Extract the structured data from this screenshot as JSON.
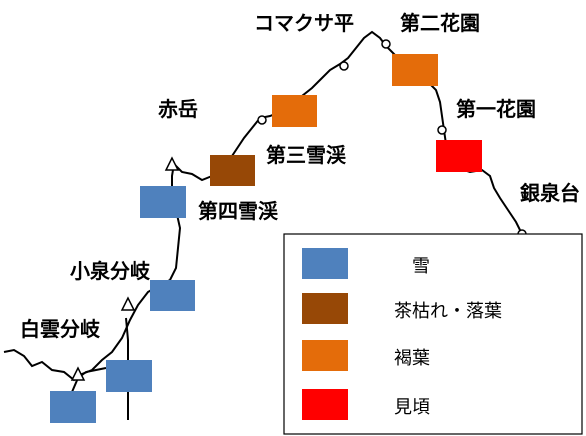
{
  "map": {
    "places": [
      {
        "id": "komakusa",
        "label": "コマクサ平"
      },
      {
        "id": "dai2",
        "label": "第二花園"
      },
      {
        "id": "akadake",
        "label": "赤岳"
      },
      {
        "id": "dai1",
        "label": "第一花園"
      },
      {
        "id": "dai3",
        "label": "第三雪渓"
      },
      {
        "id": "ginsen",
        "label": "銀泉台"
      },
      {
        "id": "dai4",
        "label": "第四雪渓"
      },
      {
        "id": "koizumi",
        "label": "小泉分岐"
      },
      {
        "id": "hakuun",
        "label": "白雲分岐"
      }
    ],
    "markers": [
      {
        "id": "m-dai2",
        "status": "brown-leaves"
      },
      {
        "id": "m-dai3",
        "status": "brown-leaves"
      },
      {
        "id": "m-dai1",
        "status": "peak"
      },
      {
        "id": "m-dai4",
        "status": "withered"
      },
      {
        "id": "m-akadake",
        "status": "snow"
      },
      {
        "id": "m-koizumi",
        "status": "snow"
      },
      {
        "id": "m-hakuun1",
        "status": "snow"
      },
      {
        "id": "m-hakuun2",
        "status": "snow"
      }
    ]
  },
  "legend": {
    "items": [
      {
        "key": "snow",
        "label": "雪",
        "color": "#4f81bd"
      },
      {
        "key": "withered",
        "label": "茶枯れ・落葉",
        "color": "#974806"
      },
      {
        "key": "brown-leaves",
        "label": "褐葉",
        "color": "#e46c0a"
      },
      {
        "key": "peak",
        "label": "見頃",
        "color": "#ff0000"
      }
    ]
  }
}
